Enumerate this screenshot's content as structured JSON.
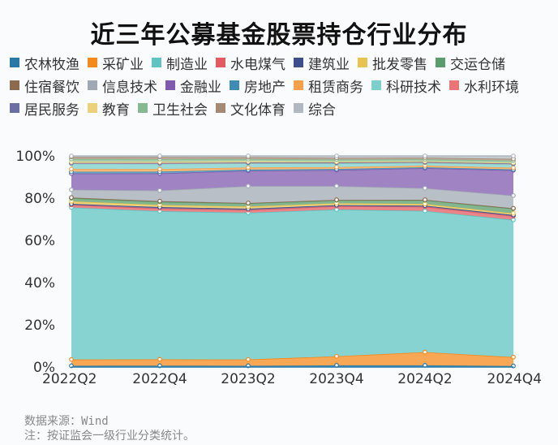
{
  "title": "近三年公募基金股票持仓行业分布",
  "legend": [
    {
      "label": "农林牧渔",
      "color": "#2879a6"
    },
    {
      "label": "采矿业",
      "color": "#f5891c"
    },
    {
      "label": "制造业",
      "color": "#5ec4c1"
    },
    {
      "label": "水电煤气",
      "color": "#e15b60"
    },
    {
      "label": "建筑业",
      "color": "#3e4d8c"
    },
    {
      "label": "批发零售",
      "color": "#e8c34f"
    },
    {
      "label": "交运仓储",
      "color": "#5a9c6b"
    },
    {
      "label": "住宿餐饮",
      "color": "#8c6a4d"
    },
    {
      "label": "信息技术",
      "color": "#a0a9b3"
    },
    {
      "label": "金融业",
      "color": "#7f5aad"
    },
    {
      "label": "房地产",
      "color": "#3d8cb5"
    },
    {
      "label": "租赁商务",
      "color": "#f7a04a"
    },
    {
      "label": "科研技术",
      "color": "#7ccfcc"
    },
    {
      "label": "水利环境",
      "color": "#e97575"
    },
    {
      "label": "居民服务",
      "color": "#6a6fa3"
    },
    {
      "label": "教育",
      "color": "#ebd27a"
    },
    {
      "label": "卫生社会",
      "color": "#86b98f"
    },
    {
      "label": "文化体育",
      "color": "#a48a74"
    },
    {
      "label": "综合",
      "color": "#b1b8c0"
    }
  ],
  "chart_data": {
    "type": "area",
    "stacked": true,
    "normalized": true,
    "title": "近三年公募基金股票持仓行业分布",
    "xlabel": "",
    "ylabel": "",
    "ylim": [
      0,
      100
    ],
    "y_ticks": [
      "0%",
      "20%",
      "40%",
      "60%",
      "80%",
      "100%"
    ],
    "categories": [
      "2022Q2",
      "2022Q4",
      "2023Q2",
      "2023Q4",
      "2024Q2",
      "2024Q4"
    ],
    "legend_position": "top",
    "grid": true,
    "series": [
      {
        "name": "农林牧渔",
        "values": [
          0.6,
          0.6,
          0.6,
          0.8,
          0.8,
          0.5
        ]
      },
      {
        "name": "采矿业",
        "values": [
          3.0,
          3.0,
          3.0,
          4.3,
          6.3,
          4.2
        ]
      },
      {
        "name": "制造业",
        "values": [
          72.0,
          69.5,
          69.5,
          69.5,
          67.0,
          65.0
        ]
      },
      {
        "name": "水电煤气",
        "values": [
          1.2,
          1.3,
          1.3,
          1.6,
          2.0,
          1.8
        ]
      },
      {
        "name": "建筑业",
        "values": [
          0.5,
          0.6,
          0.6,
          0.5,
          0.5,
          0.5
        ]
      },
      {
        "name": "批发零售",
        "values": [
          1.2,
          1.0,
          1.0,
          0.9,
          0.8,
          0.8
        ]
      },
      {
        "name": "交运仓储",
        "values": [
          1.5,
          1.5,
          1.5,
          1.4,
          1.8,
          2.2
        ]
      },
      {
        "name": "住宿餐饮",
        "values": [
          0.3,
          0.3,
          0.2,
          0.2,
          0.2,
          0.2
        ]
      },
      {
        "name": "信息技术",
        "values": [
          3.7,
          5.0,
          8.0,
          6.5,
          5.5,
          6.0
        ]
      },
      {
        "name": "金融业",
        "values": [
          7.7,
          8.0,
          7.3,
          7.6,
          9.5,
          12.0
        ]
      },
      {
        "name": "房地产",
        "values": [
          0.8,
          0.8,
          0.5,
          0.5,
          0.4,
          0.4
        ]
      },
      {
        "name": "租赁商务",
        "values": [
          1.3,
          1.2,
          1.0,
          0.9,
          0.8,
          0.8
        ]
      },
      {
        "name": "科研技术",
        "values": [
          2.5,
          2.5,
          2.0,
          1.8,
          1.4,
          1.7
        ]
      },
      {
        "name": "水利环境",
        "values": [
          0.3,
          0.3,
          0.3,
          0.3,
          0.2,
          0.2
        ]
      },
      {
        "name": "居民服务",
        "values": [
          0.1,
          0.1,
          0.1,
          0.1,
          0.1,
          0.1
        ]
      },
      {
        "name": "教育",
        "values": [
          0.6,
          0.6,
          0.6,
          0.4,
          0.4,
          0.4
        ]
      },
      {
        "name": "卫生社会",
        "values": [
          1.2,
          1.2,
          1.0,
          1.0,
          0.9,
          1.0
        ]
      },
      {
        "name": "文化体育",
        "values": [
          1.0,
          1.0,
          0.9,
          0.8,
          0.8,
          0.8
        ]
      },
      {
        "name": "综合",
        "values": [
          0.5,
          0.5,
          0.6,
          0.9,
          0.8,
          1.4
        ]
      }
    ]
  },
  "axis": {
    "y_labels": [
      "100%",
      "80%",
      "60%",
      "40%",
      "20%",
      "0%"
    ],
    "x_labels": [
      "2022Q2",
      "2022Q4",
      "2023Q2",
      "2023Q4",
      "2024Q2",
      "2024Q4"
    ]
  },
  "watermark": "Wind",
  "footnotes": {
    "source": "数据来源：Wind",
    "note": "注：按证监会一级行业分类统计。"
  }
}
